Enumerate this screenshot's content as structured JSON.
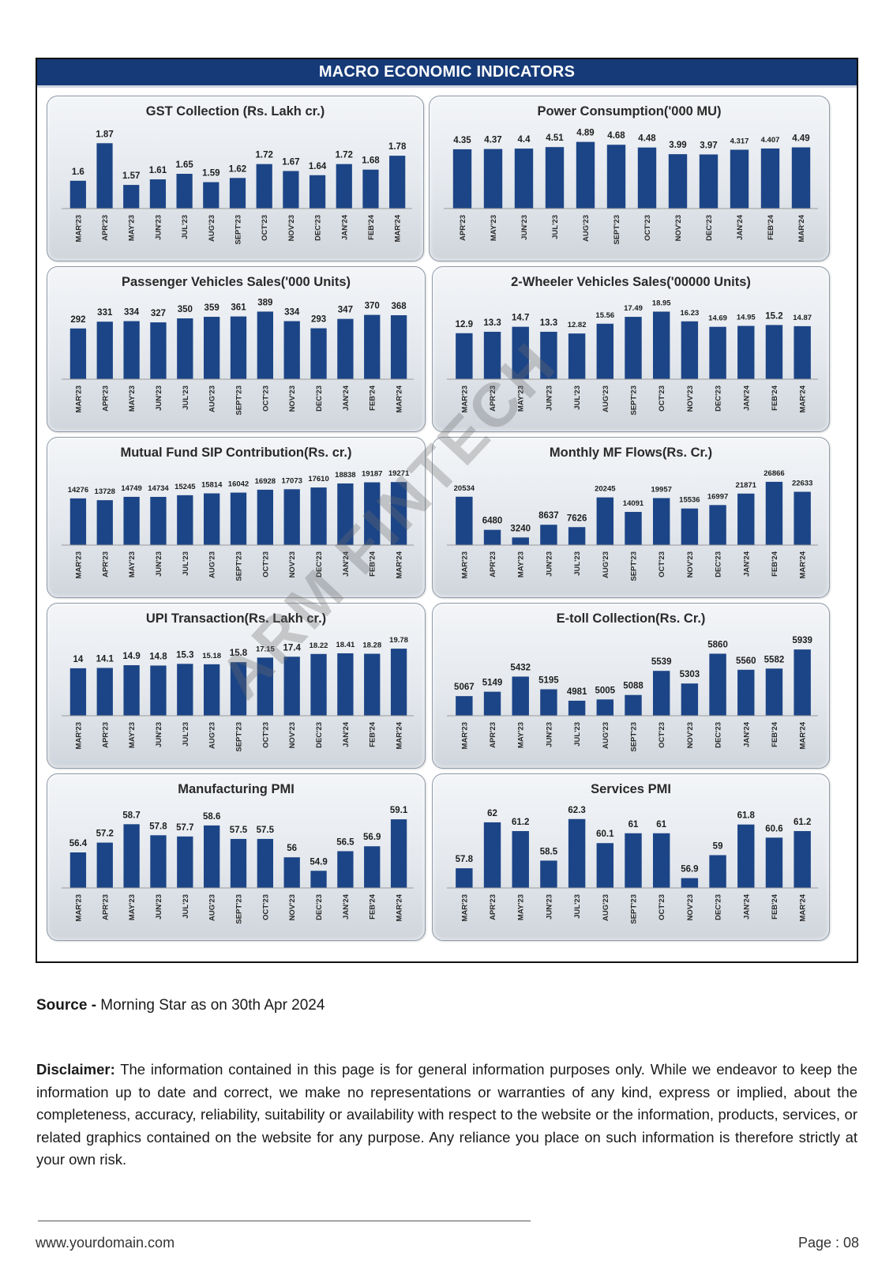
{
  "banner_title": "MACRO ECONOMIC INDICATORS",
  "colors": {
    "bar": "#1c4587",
    "banner": "#163a78",
    "panel_top": "#f3f5f8",
    "panel_bottom": "#cfd5dc"
  },
  "source": {
    "label": "Source -",
    "text": " Morning Star as on 30th Apr 2024"
  },
  "disclaimer": {
    "label": "Disclaimer:",
    "text": " The information contained in this page is for general information purposes only. While we endeavor to keep the information up to date and correct, we make no representations or warranties of any kind, express or implied, about the completeness, accuracy, reliability, suitability or availability with respect to the website or the information, products, services, or related graphics contained on the website for any purpose. Any reliance you place on such information is therefore strictly at your own risk."
  },
  "footer": {
    "url": "www.yourdomain.com",
    "page": "Page : 08"
  },
  "watermark": "ARM FINTECH",
  "chart_data": [
    {
      "type": "bar",
      "title": "GST Collection (Rs. Lakh cr.)",
      "categories": [
        "MAR'23",
        "APR'23",
        "MAY'23",
        "JUN'23",
        "JUL'23",
        "AUG'23",
        "SEPT'23",
        "OCT'23",
        "NOV'23",
        "DEC'23",
        "JAN'24",
        "FEB'24",
        "MAR'24"
      ],
      "values": [
        1.6,
        1.87,
        1.57,
        1.61,
        1.65,
        1.59,
        1.62,
        1.72,
        1.67,
        1.64,
        1.72,
        1.68,
        1.78
      ],
      "labels": [
        "1.6",
        "1.87",
        "1.57",
        "1.61",
        "1.65",
        "1.59",
        "1.62",
        "1.72",
        "1.67",
        "1.64",
        "1.72",
        "1.68",
        "1.78"
      ],
      "ylim": [
        1.4,
        1.9
      ]
    },
    {
      "type": "bar",
      "title": "Power Consumption('000 MU)",
      "categories": [
        "APR'23",
        "MAY'23",
        "JUN'23",
        "JUL'23",
        "AUG'23",
        "SEPT'23",
        "OCT'23",
        "NOV'23",
        "DEC'23",
        "JAN'24",
        "FEB'24",
        "MAR'24"
      ],
      "values": [
        4.35,
        4.37,
        4.4,
        4.51,
        4.89,
        4.68,
        4.48,
        3.99,
        3.97,
        4.317,
        4.407,
        4.49
      ],
      "labels": [
        "4.35",
        "4.37",
        "4.4",
        "4.51",
        "4.89",
        "4.68",
        "4.48",
        "3.99",
        "3.97",
        "4.317",
        "4.407",
        "4.49"
      ],
      "ylim": [
        0,
        5.1
      ]
    },
    {
      "type": "bar",
      "title": "Passenger Vehicles Sales('000 Units)",
      "categories": [
        "MAR'23",
        "APR'23",
        "MAY'23",
        "JUN'23",
        "JUL'23",
        "AUG'23",
        "SEPT'23",
        "OCT'23",
        "NOV'23",
        "DEC'23",
        "JAN'24",
        "FEB'24",
        "MAR'24"
      ],
      "values": [
        292,
        331,
        334,
        327,
        350,
        359,
        361,
        389,
        334,
        293,
        347,
        370,
        368
      ],
      "labels": [
        "292",
        "331",
        "334",
        "327",
        "350",
        "359",
        "361",
        "389",
        "334",
        "293",
        "347",
        "370",
        "368"
      ],
      "ylim": [
        0,
        400
      ]
    },
    {
      "type": "bar",
      "title": "2-Wheeler Vehicles Sales('00000 Units)",
      "categories": [
        "MAR'23",
        "APR'23",
        "MAY'23",
        "JUN'23",
        "JUL'23",
        "AUG'23",
        "SEPT'23",
        "OCT'23",
        "NOV'23",
        "DEC'23",
        "JAN'24",
        "FEB'24",
        "MAR'24"
      ],
      "values": [
        12.9,
        13.3,
        14.7,
        13.3,
        12.82,
        15.56,
        17.49,
        18.95,
        16.23,
        14.69,
        14.95,
        15.2,
        14.87
      ],
      "labels": [
        "12.9",
        "13.3",
        "14.7",
        "13.3",
        "12.82",
        "15.56",
        "17.49",
        "18.95",
        "16.23",
        "14.69",
        "14.95",
        "15.2",
        "14.87"
      ],
      "ylim": [
        0,
        19.5
      ]
    },
    {
      "type": "bar",
      "title": "Mutual Fund SIP Contribution(Rs. cr.)",
      "categories": [
        "MAR'23",
        "APR'23",
        "MAY'23",
        "JUN'23",
        "JUL'23",
        "AUG'23",
        "SEPT'23",
        "OCT'23",
        "NOV'23",
        "DEC'23",
        "JAN'24",
        "FEB'24",
        "MAR'24"
      ],
      "values": [
        14276,
        13728,
        14749,
        14734,
        15245,
        15814,
        16042,
        16928,
        17073,
        17610,
        18838,
        19187,
        19271
      ],
      "labels": [
        "14276",
        "13728",
        "14749",
        "14734",
        "15245",
        "15814",
        "16042",
        "16928",
        "17073",
        "17610",
        "18838",
        "19187",
        "19271"
      ],
      "ylim": [
        0,
        19800
      ]
    },
    {
      "type": "bar",
      "title": "Monthly MF Flows(Rs. Cr.)",
      "categories": [
        "MAR'23",
        "APR'23",
        "MAY'23",
        "JUN'23",
        "JUL'23",
        "AUG'23",
        "SEPT'23",
        "OCT'23",
        "NOV'23",
        "DEC'23",
        "JAN'24",
        "FEB'24",
        "MAR'24"
      ],
      "values": [
        20534,
        6480,
        3240,
        8637,
        7626,
        20245,
        14091,
        19957,
        15536,
        16997,
        21871,
        26866,
        22633
      ],
      "labels": [
        "20534",
        "6480",
        "3240",
        "8637",
        "7626",
        "20245",
        "14091",
        "19957",
        "15536",
        "16997",
        "21871",
        "26866",
        "22633"
      ],
      "ylim": [
        0,
        27500
      ]
    },
    {
      "type": "bar",
      "title": "UPI Transaction(Rs. Lakh cr.)",
      "categories": [
        "MAR'23",
        "APR'23",
        "MAY'23",
        "JUN'23",
        "JUL'23",
        "AUG'23",
        "SEPT'23",
        "OCT'23",
        "NOV'23",
        "DEC'23",
        "JAN'24",
        "FEB'24",
        "MAR'24"
      ],
      "values": [
        14,
        14.1,
        14.9,
        14.8,
        15.3,
        15.18,
        15.8,
        17.15,
        17.4,
        18.22,
        18.41,
        18.28,
        19.78
      ],
      "labels": [
        "14",
        "14.1",
        "14.9",
        "14.8",
        "15.3",
        "15.18",
        "15.8",
        "17.15",
        "17.4",
        "18.22",
        "18.41",
        "18.28",
        "19.78"
      ],
      "ylim": [
        0,
        20.5
      ]
    },
    {
      "type": "bar",
      "title": "E-toll Collection(Rs. Cr.)",
      "categories": [
        "MAR'23",
        "APR'23",
        "MAY'23",
        "JUN'23",
        "JUL'23",
        "AUG'23",
        "SEPT'23",
        "OCT'23",
        "NOV'23",
        "DEC'23",
        "JAN'24",
        "FEB'24",
        "MAR'24"
      ],
      "values": [
        5067,
        5149,
        5432,
        5195,
        4981,
        5005,
        5088,
        5539,
        5303,
        5860,
        5560,
        5582,
        5939
      ],
      "labels": [
        "5067",
        "5149",
        "5432",
        "5195",
        "4981",
        "5005",
        "5088",
        "5539",
        "5303",
        "5860",
        "5560",
        "5582",
        "5939"
      ],
      "ylim": [
        4700,
        6000
      ]
    },
    {
      "type": "bar",
      "title": "Manufacturing PMI",
      "categories": [
        "MAR'23",
        "APR'23",
        "MAY'23",
        "JUN'23",
        "JUL'23",
        "AUG'23",
        "SEPT'23",
        "OCT'23",
        "NOV'23",
        "DEC'23",
        "JAN'24",
        "FEB'24",
        "MAR'24"
      ],
      "values": [
        56.4,
        57.2,
        58.7,
        57.8,
        57.7,
        58.6,
        57.5,
        57.5,
        56,
        54.9,
        56.5,
        56.9,
        59.1
      ],
      "labels": [
        "56.4",
        "57.2",
        "58.7",
        "57.8",
        "57.7",
        "58.6",
        "57.5",
        "57.5",
        "56",
        "54.9",
        "56.5",
        "56.9",
        "59.1"
      ],
      "ylim": [
        53.5,
        59.3
      ]
    },
    {
      "type": "bar",
      "title": "Services PMI",
      "categories": [
        "MAR'23",
        "APR'23",
        "MAY'23",
        "JUN'23",
        "JUL'23",
        "AUG'23",
        "SEPT'23",
        "OCT'23",
        "NOV'23",
        "DEC'23",
        "JAN'24",
        "FEB'24",
        "MAR'24"
      ],
      "values": [
        57.8,
        62,
        61.2,
        58.5,
        62.3,
        60.1,
        61,
        61,
        56.9,
        59,
        61.8,
        60.6,
        61.2
      ],
      "labels": [
        "57.8",
        "62",
        "61.2",
        "58.5",
        "62.3",
        "60.1",
        "61",
        "61",
        "56.9",
        "59",
        "61.8",
        "60.6",
        "61.2"
      ],
      "ylim": [
        56,
        62.5
      ]
    }
  ]
}
